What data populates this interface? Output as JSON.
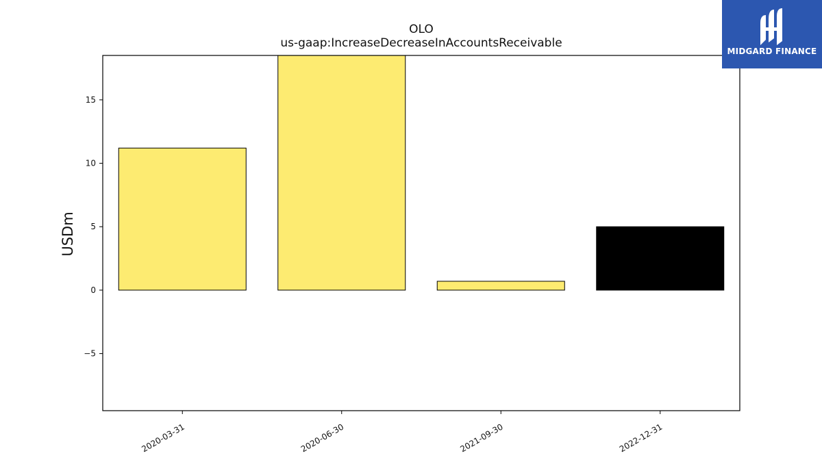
{
  "chart_data": {
    "type": "bar",
    "title": "OLO",
    "subtitle": "us-gaap:IncreaseDecreaseInAccountsReceivable",
    "ylabel": "USDm",
    "xlabel": "",
    "ylim": [
      -9.5,
      18.5
    ],
    "yticks": [
      -5,
      0,
      5,
      10,
      15
    ],
    "grid": false,
    "categories": [
      "2020-03-31",
      "2020-06-30",
      "2021-09-30",
      "2022-12-31"
    ],
    "values": [
      11.2,
      18.5,
      0.7,
      5.0
    ],
    "highlight": [
      false,
      false,
      false,
      true
    ],
    "colors": {
      "bar": "#fdeb71",
      "highlight": "#000000",
      "edge": "#000000"
    }
  },
  "brand": {
    "name": "MIDGARD FINANCE",
    "background": "#2c57b0"
  }
}
